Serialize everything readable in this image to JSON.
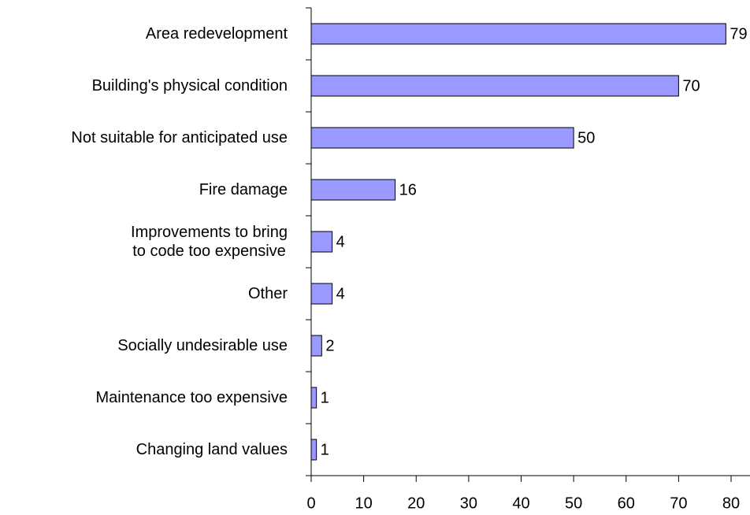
{
  "chart_data": {
    "type": "bar",
    "orientation": "horizontal",
    "categories": [
      "Area redevelopment",
      "Building's physical condition",
      "Not suitable for anticipated use",
      "Fire damage",
      "Improvements to bring\nto code too expensive",
      "Other",
      "Socially undesirable use",
      "Maintenance too expensive",
      "Changing land values"
    ],
    "values": [
      79,
      70,
      50,
      16,
      4,
      4,
      2,
      1,
      1
    ],
    "color": "#9999ff",
    "xlim": [
      0,
      80
    ],
    "xticks": [
      0,
      10,
      20,
      30,
      40,
      50,
      60,
      70,
      80
    ],
    "grid": false
  }
}
